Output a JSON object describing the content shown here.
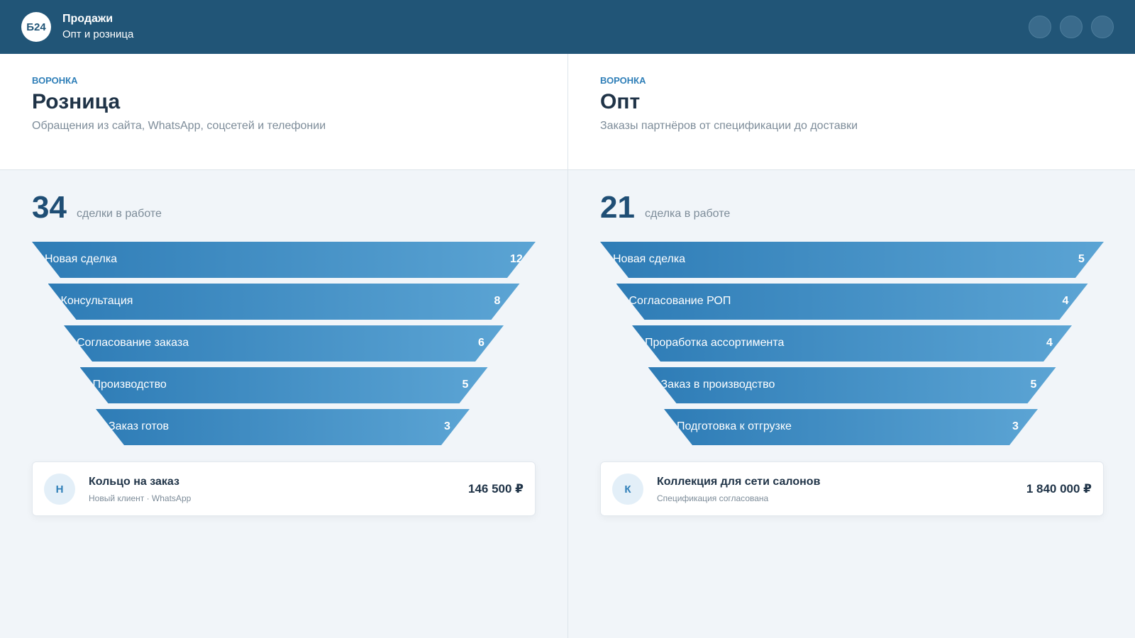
{
  "header": {
    "logo": "Б24",
    "title": "Продажи",
    "subtitle": "Опт и розница"
  },
  "panels": [
    {
      "label": "ВОРОНКА",
      "title": "Розница",
      "subtitle": "Обращения из сайта, WhatsApp, соцсетей и телефонии",
      "total": 34,
      "total_label": "сделки в работе",
      "stages": [
        {
          "name": "Новая сделка",
          "count": 12
        },
        {
          "name": "Консультация",
          "count": 8
        },
        {
          "name": "Согласование заказа",
          "count": 6
        },
        {
          "name": "Производство",
          "count": 5
        },
        {
          "name": "Заказ готов",
          "count": 3
        }
      ],
      "deal": {
        "initial": "Н",
        "title": "Кольцо на заказ",
        "meta": "Новый клиент · WhatsApp",
        "amount": "146 500 ₽"
      }
    },
    {
      "label": "ВОРОНКА",
      "title": "Опт",
      "subtitle": "Заказы партнёров от спецификации до доставки",
      "total": 21,
      "total_label": "сделка в работе",
      "stages": [
        {
          "name": "Новая сделка",
          "count": 5
        },
        {
          "name": "Согласование РОП",
          "count": 4
        },
        {
          "name": "Проработка ассортимента",
          "count": 4
        },
        {
          "name": "Заказ в производство",
          "count": 5
        },
        {
          "name": "Подготовка к отгрузке",
          "count": 3
        }
      ],
      "deal": {
        "initial": "К",
        "title": "Коллекция для сети салонов",
        "meta": "Спецификация согласована",
        "amount": "1 840 000 ₽"
      }
    }
  ]
}
